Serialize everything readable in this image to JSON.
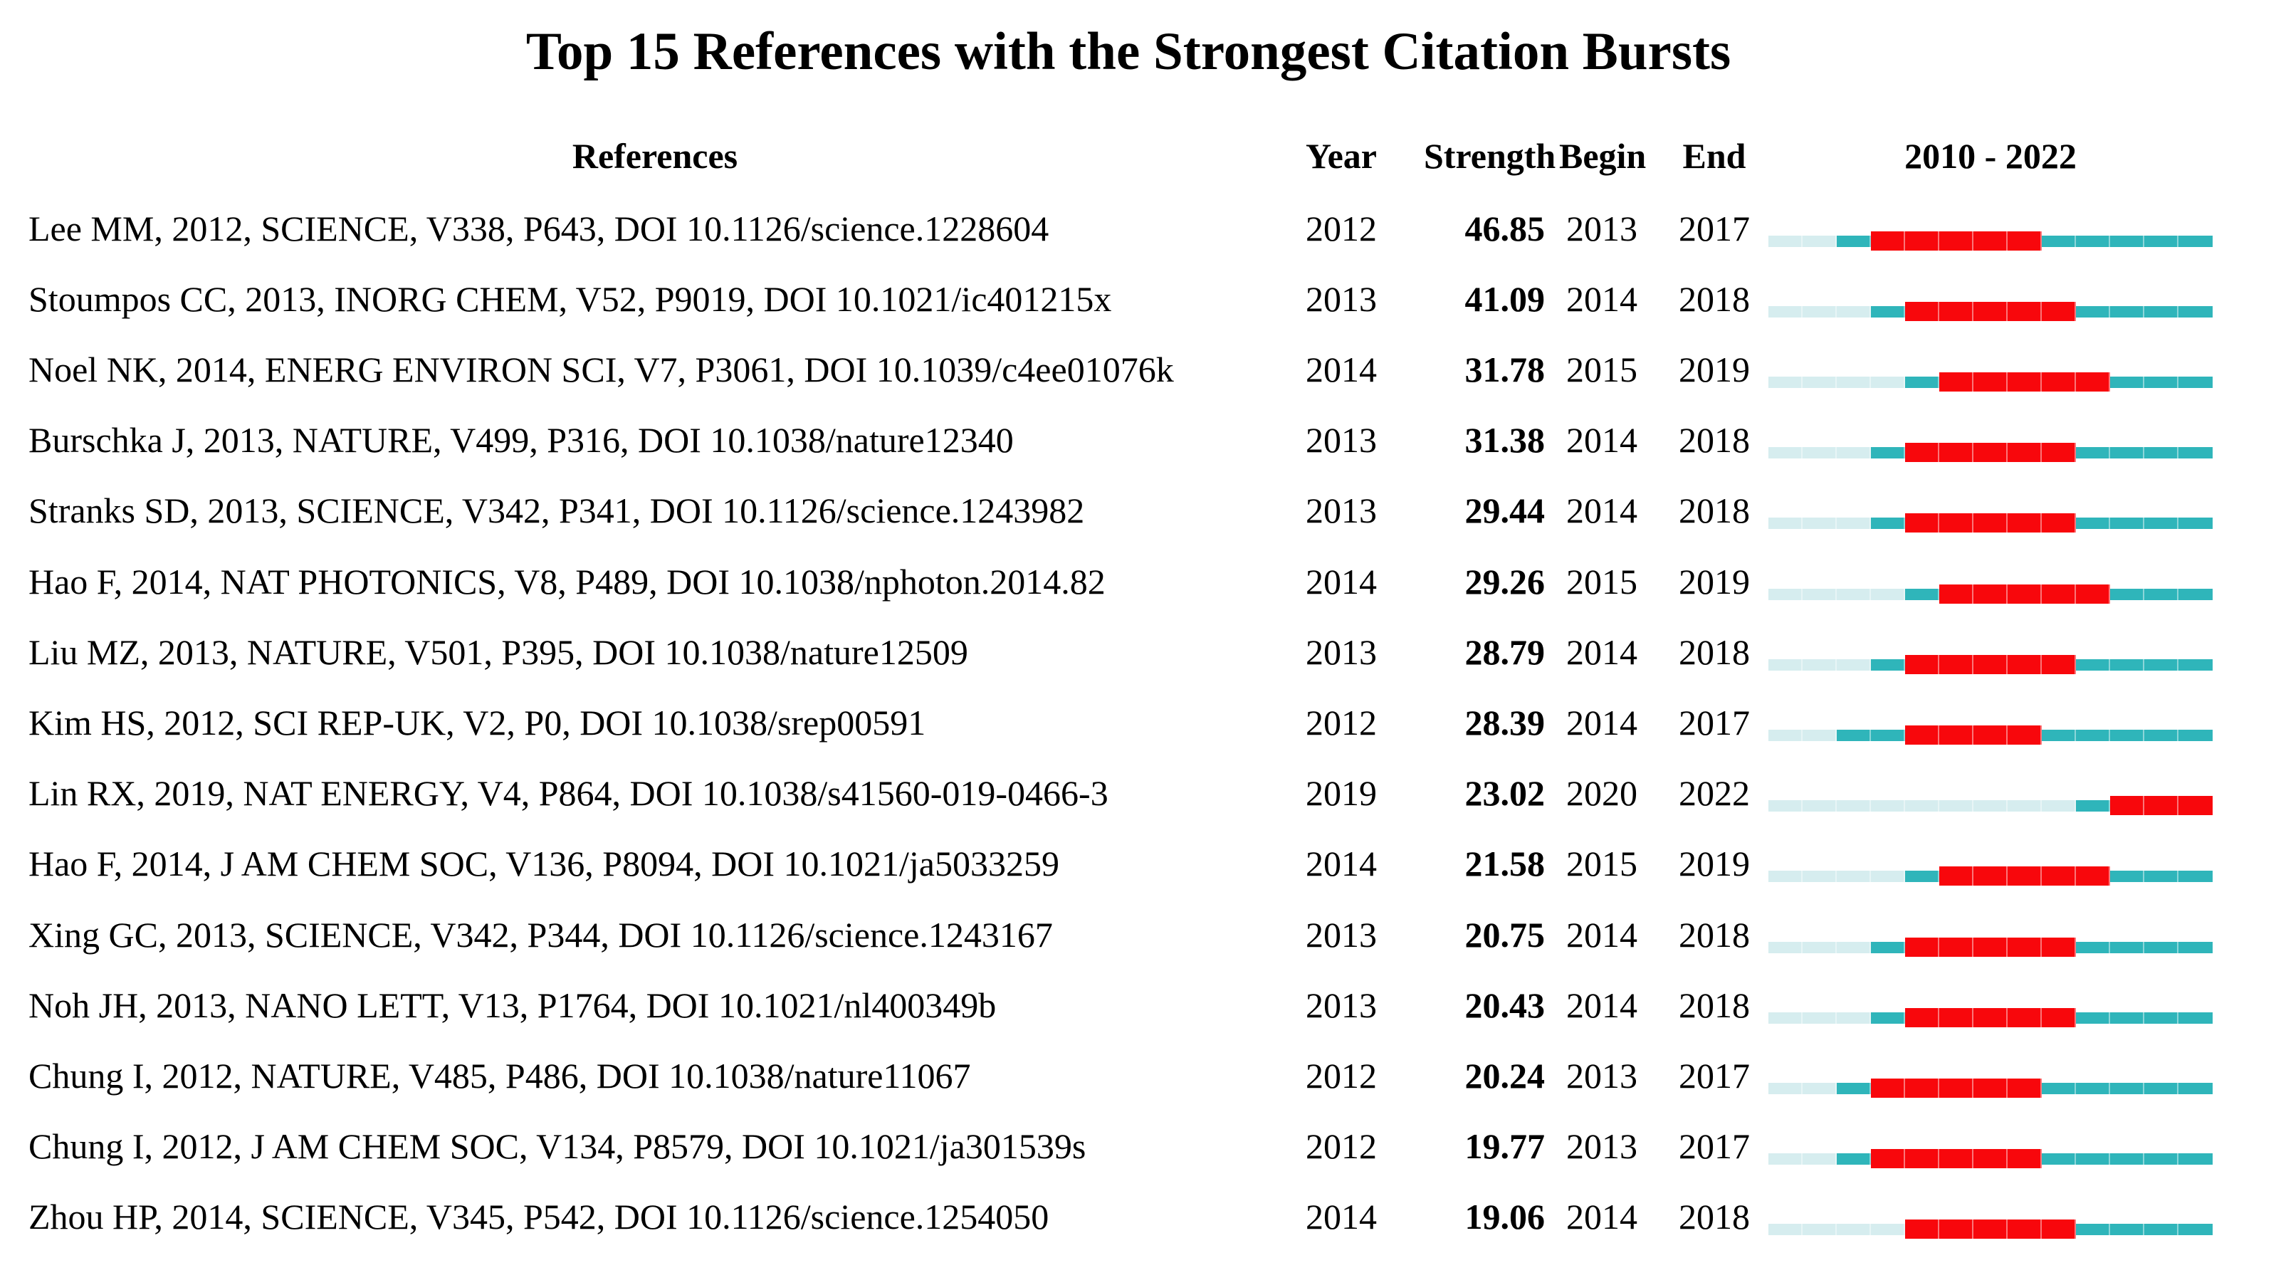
{
  "chart_data": {
    "type": "table",
    "title": "Top 15 References with the Strongest Citation Bursts",
    "columns": {
      "references": "References",
      "year": "Year",
      "strength": "Strength",
      "begin": "Begin",
      "end": "End",
      "period": "2010 - 2022"
    },
    "timeline": {
      "start_year": 2010,
      "end_year": 2022
    },
    "colors": {
      "pre_publication_segment": "#d6edef",
      "active_segment": "#2fb5ba",
      "burst_segment": "#f8070c",
      "text": "#000000",
      "background": "#ffffff"
    },
    "rows": [
      {
        "reference": "Lee MM, 2012, SCIENCE, V338, P643, DOI 10.1126/science.1228604",
        "year": 2012,
        "strength": "46.85",
        "begin": 2013,
        "end": 2017
      },
      {
        "reference": "Stoumpos CC, 2013, INORG CHEM, V52, P9019, DOI 10.1021/ic401215x",
        "year": 2013,
        "strength": "41.09",
        "begin": 2014,
        "end": 2018
      },
      {
        "reference": "Noel NK, 2014, ENERG ENVIRON SCI, V7, P3061, DOI 10.1039/c4ee01076k",
        "year": 2014,
        "strength": "31.78",
        "begin": 2015,
        "end": 2019
      },
      {
        "reference": "Burschka J, 2013, NATURE, V499, P316, DOI 10.1038/nature12340",
        "year": 2013,
        "strength": "31.38",
        "begin": 2014,
        "end": 2018
      },
      {
        "reference": "Stranks SD, 2013, SCIENCE, V342, P341, DOI 10.1126/science.1243982",
        "year": 2013,
        "strength": "29.44",
        "begin": 2014,
        "end": 2018
      },
      {
        "reference": "Hao F, 2014, NAT PHOTONICS, V8, P489, DOI 10.1038/nphoton.2014.82",
        "year": 2014,
        "strength": "29.26",
        "begin": 2015,
        "end": 2019
      },
      {
        "reference": "Liu MZ, 2013, NATURE, V501, P395, DOI 10.1038/nature12509",
        "year": 2013,
        "strength": "28.79",
        "begin": 2014,
        "end": 2018
      },
      {
        "reference": "Kim HS, 2012, SCI REP-UK, V2, P0, DOI 10.1038/srep00591",
        "year": 2012,
        "strength": "28.39",
        "begin": 2014,
        "end": 2017
      },
      {
        "reference": "Lin RX, 2019, NAT ENERGY, V4, P864, DOI 10.1038/s41560-019-0466-3",
        "year": 2019,
        "strength": "23.02",
        "begin": 2020,
        "end": 2022
      },
      {
        "reference": "Hao F, 2014, J AM CHEM SOC, V136, P8094, DOI 10.1021/ja5033259",
        "year": 2014,
        "strength": "21.58",
        "begin": 2015,
        "end": 2019
      },
      {
        "reference": "Xing GC, 2013, SCIENCE, V342, P344, DOI 10.1126/science.1243167",
        "year": 2013,
        "strength": "20.75",
        "begin": 2014,
        "end": 2018
      },
      {
        "reference": "Noh JH, 2013, NANO LETT, V13, P1764, DOI 10.1021/nl400349b",
        "year": 2013,
        "strength": "20.43",
        "begin": 2014,
        "end": 2018
      },
      {
        "reference": "Chung I, 2012, NATURE, V485, P486, DOI 10.1038/nature11067",
        "year": 2012,
        "strength": "20.24",
        "begin": 2013,
        "end": 2017
      },
      {
        "reference": "Chung I, 2012, J AM CHEM SOC, V134, P8579, DOI 10.1021/ja301539s",
        "year": 2012,
        "strength": "19.77",
        "begin": 2013,
        "end": 2017
      },
      {
        "reference": "Zhou HP, 2014, SCIENCE, V345, P542, DOI 10.1126/science.1254050",
        "year": 2014,
        "strength": "19.06",
        "begin": 2014,
        "end": 2018
      }
    ]
  }
}
